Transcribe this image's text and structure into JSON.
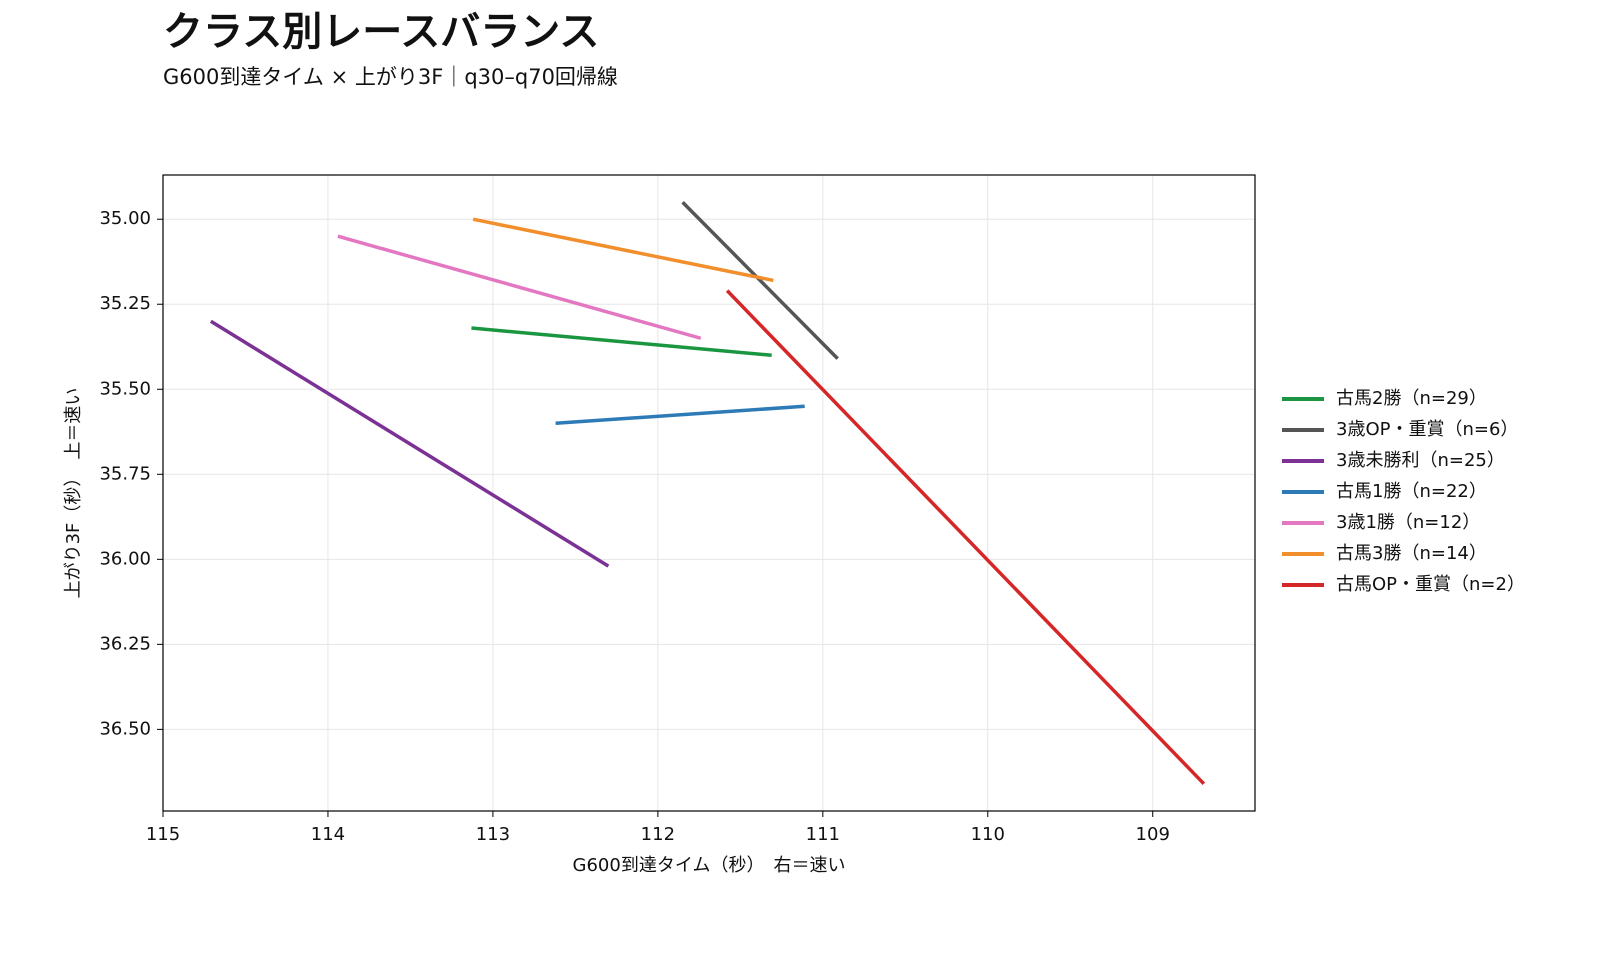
{
  "chart_data": {
    "type": "line",
    "title": "クラス別レースバランス",
    "subtitle": "G600到達タイム × 上がり3F｜q30–q70回帰線",
    "x_label": "G600到達タイム（秒）　右＝速い",
    "y_label": "上がり3F（秒）　上＝速い",
    "xlim": [
      115,
      108.38
    ],
    "xticks": [
      115,
      114,
      113,
      112,
      111,
      110,
      109
    ],
    "ylim": [
      36.74,
      34.87
    ],
    "yticks": [
      {
        "value": 35,
        "label": "35.00"
      },
      {
        "value": 35.25,
        "label": "35.25"
      },
      {
        "value": 35.5,
        "label": "35.50"
      },
      {
        "value": 35.75,
        "label": "35.75"
      },
      {
        "value": 36,
        "label": "36.00"
      },
      {
        "value": 36.25,
        "label": "36.25"
      },
      {
        "value": 36.5,
        "label": "36.50"
      }
    ],
    "grid": true,
    "legend": "right",
    "series": [
      {
        "name": "古馬2勝（n=29）",
        "color": "#1a9641",
        "x": [
          113.13,
          111.31
        ],
        "values": [
          35.32,
          35.4
        ]
      },
      {
        "name": "3歳OP・重賞（n=6）",
        "color": "#555555",
        "x": [
          111.85,
          110.91
        ],
        "values": [
          34.95,
          35.41
        ]
      },
      {
        "name": "3歳未勝利（n=25）",
        "color": "#7b3294",
        "x": [
          114.71,
          112.3
        ],
        "values": [
          35.3,
          36.02
        ]
      },
      {
        "name": "古馬1勝（n=22）",
        "color": "#2c7bb6",
        "x": [
          112.62,
          111.11
        ],
        "values": [
          35.6,
          35.55
        ]
      },
      {
        "name": "3歳1勝（n=12）",
        "color": "#e377c2",
        "x": [
          113.94,
          111.74
        ],
        "values": [
          35.05,
          35.35
        ]
      },
      {
        "name": "古馬3勝（n=14）",
        "color": "#f28e2b",
        "x": [
          113.12,
          111.3
        ],
        "values": [
          35.0,
          35.18
        ]
      },
      {
        "name": "古馬OP・重賞（n=2）",
        "color": "#d62728",
        "x": [
          111.58,
          108.69
        ],
        "values": [
          35.21,
          36.66
        ]
      }
    ]
  }
}
